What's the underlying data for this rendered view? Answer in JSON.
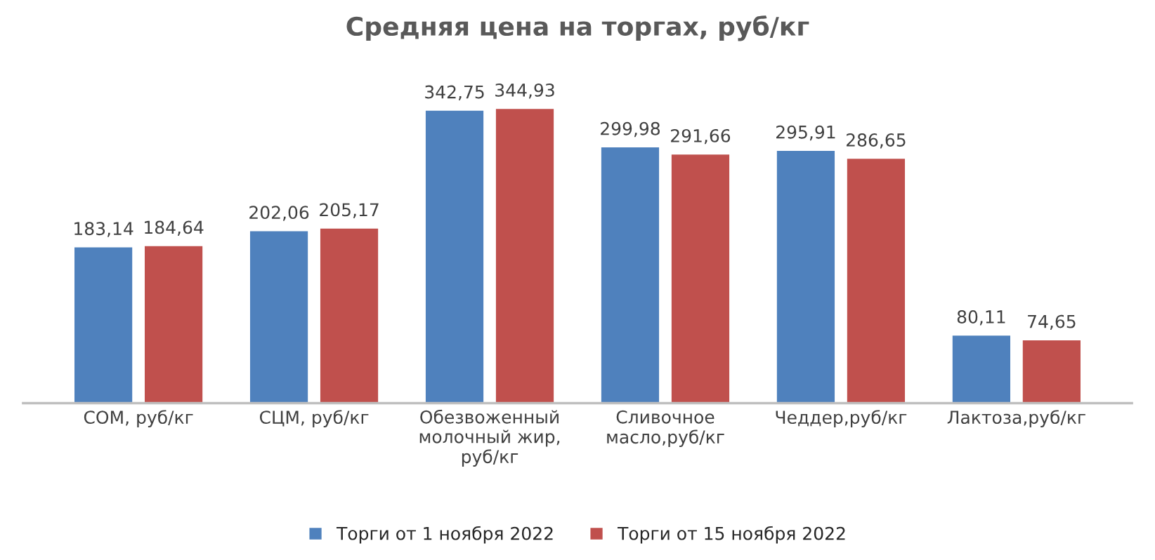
{
  "chart_data": {
    "type": "bar",
    "title": "Средняя цена на торгах, руб/кг",
    "categories": [
      "СОМ, руб/кг",
      "СЦМ, руб/кг",
      "Обезвоженный\nмолочный жир,\nруб/кг",
      "Сливочное\nмасло,руб/кг",
      "Чеддер,руб/кг",
      "Лактоза,руб/кг"
    ],
    "series": [
      {
        "name": "Торги от 1 ноября 2022",
        "color": "#4f81bd",
        "values": [
          183.14,
          202.06,
          342.75,
          299.98,
          295.91,
          80.11
        ],
        "value_labels": [
          "183,14",
          "202,06",
          "342,75",
          "299,98",
          "295,91",
          "80,11"
        ]
      },
      {
        "name": "Торги от 15 ноября 2022",
        "color": "#c0504d",
        "values": [
          184.64,
          205.17,
          344.93,
          291.66,
          286.65,
          74.65
        ],
        "value_labels": [
          "184,64",
          "205,17",
          "344,93",
          "291,66",
          "286,65",
          "74,65"
        ]
      }
    ],
    "tick_labels": "x",
    "grid": false,
    "legend": "bottom"
  }
}
